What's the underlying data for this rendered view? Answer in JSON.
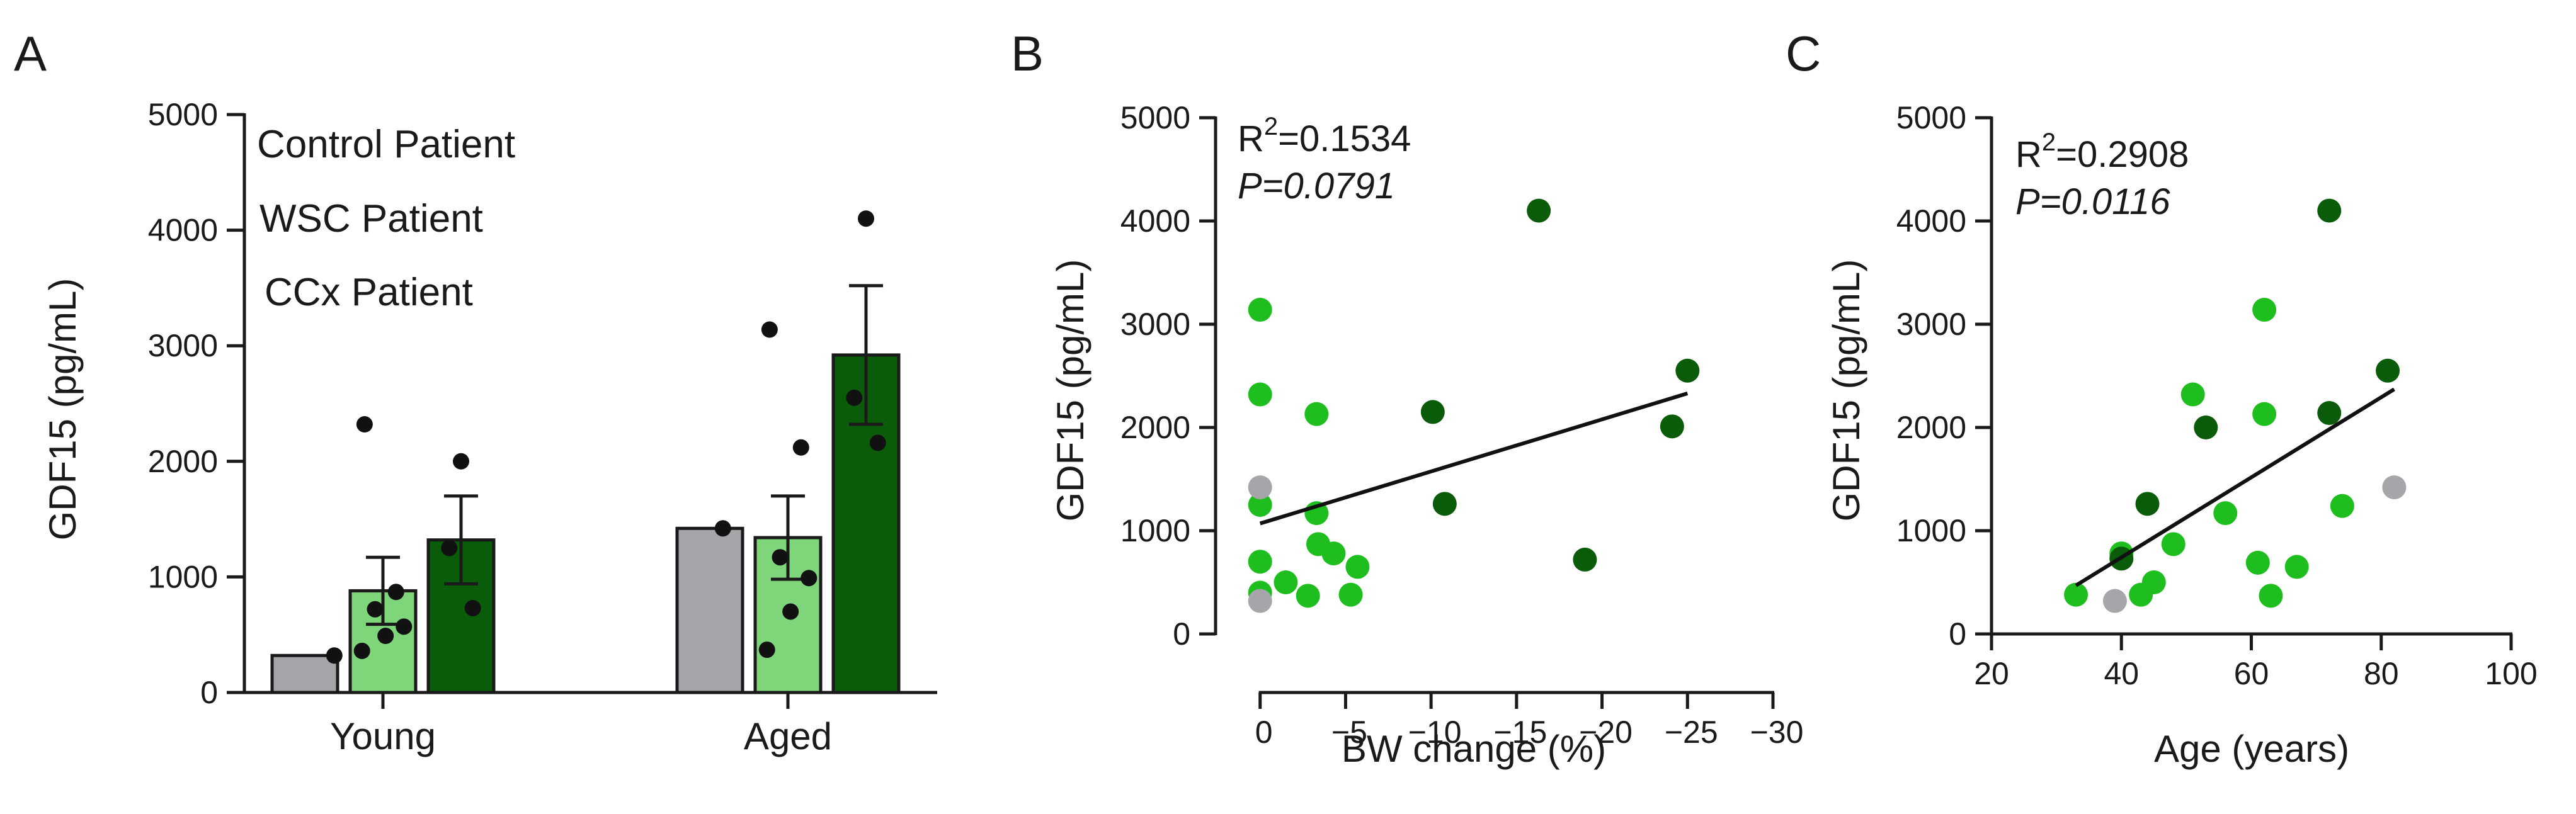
{
  "colors": {
    "control": "#a6a6aa",
    "wsc": "#1ebe1e",
    "wsc_bar": "#7fd67a",
    "ccx": "#0a5c0a",
    "axis": "#1a1a1a"
  },
  "chart_data": [
    {
      "panel": "A",
      "type": "bar",
      "ylabel": "GDF15 (pg/mL)",
      "ylim": [
        0,
        5000
      ],
      "yticks": [
        0,
        1000,
        2000,
        3000,
        4000,
        5000
      ],
      "categories": [
        "Young",
        "Aged"
      ],
      "legend": [
        "Control Patient",
        "WSC Patient",
        "CCx Patient"
      ],
      "series": [
        {
          "name": "Control Patient",
          "values": [
            320,
            1420
          ],
          "sem": [
            0,
            0
          ],
          "points": [
            [
              320
            ],
            [
              1420
            ]
          ]
        },
        {
          "name": "WSC Patient",
          "values": [
            880,
            1340
          ],
          "sem": [
            290,
            360
          ],
          "points": [
            [
              2320,
              870,
              720,
              570,
              490,
              360
            ],
            [
              3140,
              2120,
              1170,
              990,
              700,
              370
            ]
          ]
        },
        {
          "name": "CCx Patient",
          "values": [
            1320,
            2920
          ],
          "sem": [
            380,
            600
          ],
          "points": [
            [
              2000,
              1250,
              730
            ],
            [
              4100,
              2550,
              2160
            ]
          ]
        }
      ]
    },
    {
      "panel": "B",
      "type": "scatter",
      "xlabel": "BW change (%)",
      "ylabel": "GDF15 (pg/mL)",
      "xlim": [
        5,
        -30
      ],
      "xticks": [
        0,
        -5,
        -10,
        -15,
        -20,
        -25,
        -30
      ],
      "ylim": [
        0,
        5000
      ],
      "yticks": [
        0,
        1000,
        2000,
        3000,
        4000,
        5000
      ],
      "annotation_r2": "=0.1534",
      "annotation_p": "P=0.0791",
      "fit_line": {
        "x": [
          0,
          -25
        ],
        "y": [
          1070,
          2330
        ]
      },
      "points": [
        {
          "x": 0,
          "y": 3140,
          "group": "wsc"
        },
        {
          "x": 0,
          "y": 2320,
          "group": "wsc"
        },
        {
          "x": 0,
          "y": 1420,
          "group": "control"
        },
        {
          "x": 0,
          "y": 1250,
          "group": "wsc"
        },
        {
          "x": 0,
          "y": 700,
          "group": "wsc"
        },
        {
          "x": 0,
          "y": 400,
          "group": "wsc"
        },
        {
          "x": 0,
          "y": 320,
          "group": "control"
        },
        {
          "x": -1.5,
          "y": 500,
          "group": "wsc"
        },
        {
          "x": -2.8,
          "y": 370,
          "group": "wsc"
        },
        {
          "x": -3.3,
          "y": 2130,
          "group": "wsc"
        },
        {
          "x": -3.3,
          "y": 1170,
          "group": "wsc"
        },
        {
          "x": -3.4,
          "y": 870,
          "group": "wsc"
        },
        {
          "x": -4.3,
          "y": 780,
          "group": "wsc"
        },
        {
          "x": -5.3,
          "y": 380,
          "group": "wsc"
        },
        {
          "x": -5.7,
          "y": 650,
          "group": "wsc"
        },
        {
          "x": -10.1,
          "y": 2150,
          "group": "ccx"
        },
        {
          "x": -10.8,
          "y": 1260,
          "group": "ccx"
        },
        {
          "x": -16.3,
          "y": 4100,
          "group": "ccx"
        },
        {
          "x": -19,
          "y": 720,
          "group": "ccx"
        },
        {
          "x": -24.1,
          "y": 2010,
          "group": "ccx"
        },
        {
          "x": -25,
          "y": 2550,
          "group": "ccx"
        }
      ]
    },
    {
      "panel": "C",
      "type": "scatter",
      "xlabel": "Age (years)",
      "ylabel": "GDF15 (pg/mL)",
      "xlim": [
        20,
        100
      ],
      "xticks": [
        20,
        40,
        60,
        80,
        100
      ],
      "ylim": [
        0,
        5000
      ],
      "yticks": [
        0,
        1000,
        2000,
        3000,
        4000,
        5000
      ],
      "annotation_r2": "=0.2908",
      "annotation_p": "P=0.0116",
      "fit_line": {
        "x": [
          33,
          82
        ],
        "y": [
          470,
          2370
        ]
      },
      "points": [
        {
          "x": 33,
          "y": 380,
          "group": "wsc"
        },
        {
          "x": 39,
          "y": 320,
          "group": "control"
        },
        {
          "x": 40,
          "y": 780,
          "group": "wsc"
        },
        {
          "x": 40,
          "y": 730,
          "group": "ccx"
        },
        {
          "x": 43,
          "y": 380,
          "group": "wsc"
        },
        {
          "x": 44,
          "y": 1260,
          "group": "ccx"
        },
        {
          "x": 45,
          "y": 500,
          "group": "wsc"
        },
        {
          "x": 48,
          "y": 870,
          "group": "wsc"
        },
        {
          "x": 51,
          "y": 2320,
          "group": "wsc"
        },
        {
          "x": 53,
          "y": 2000,
          "group": "ccx"
        },
        {
          "x": 56,
          "y": 1170,
          "group": "wsc"
        },
        {
          "x": 61,
          "y": 690,
          "group": "wsc"
        },
        {
          "x": 62,
          "y": 3140,
          "group": "wsc"
        },
        {
          "x": 62,
          "y": 2130,
          "group": "wsc"
        },
        {
          "x": 63,
          "y": 370,
          "group": "wsc"
        },
        {
          "x": 67,
          "y": 650,
          "group": "wsc"
        },
        {
          "x": 72,
          "y": 4100,
          "group": "ccx"
        },
        {
          "x": 72,
          "y": 2140,
          "group": "ccx"
        },
        {
          "x": 74,
          "y": 1240,
          "group": "wsc"
        },
        {
          "x": 81,
          "y": 2550,
          "group": "ccx"
        },
        {
          "x": 82,
          "y": 1420,
          "group": "control"
        }
      ]
    }
  ],
  "panels": {
    "a": {
      "letter": "A"
    },
    "b": {
      "letter": "B",
      "r2_prefix": "R",
      "r2_sup": "2"
    },
    "c": {
      "letter": "C",
      "r2_prefix": "R",
      "r2_sup": "2"
    }
  }
}
